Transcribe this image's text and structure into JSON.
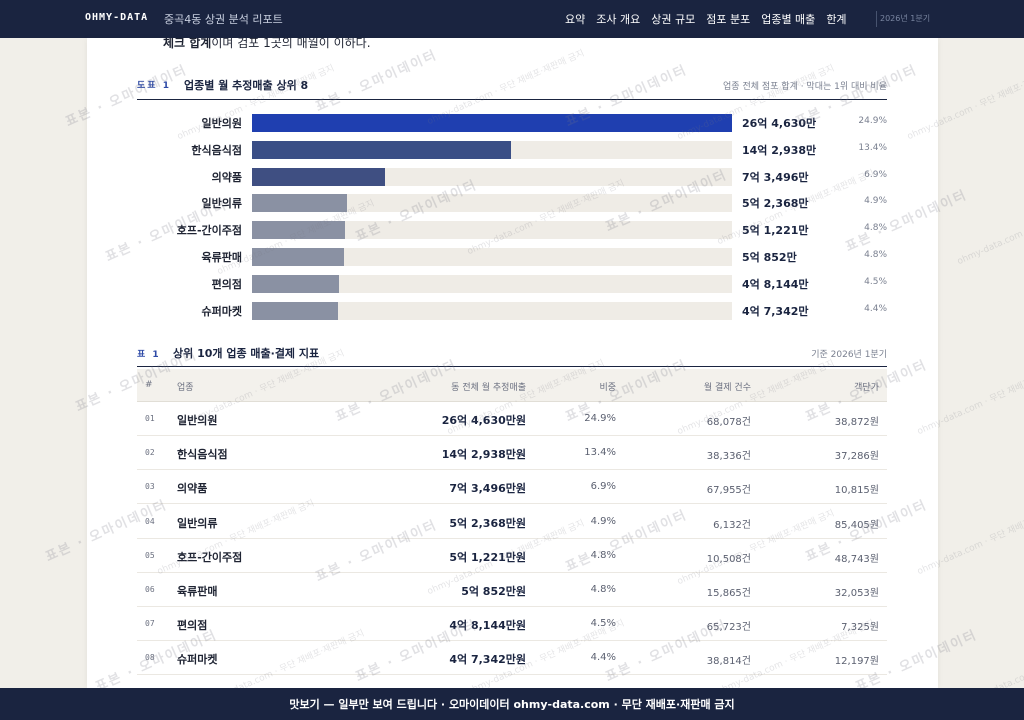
{
  "nav": {
    "brand": "OHMY-DATA",
    "report_title": "중곡4동 상권 분석 리포트",
    "links": [
      "요약",
      "조사 개요",
      "상권 규모",
      "점포 분포",
      "업종별 매출",
      "한계"
    ],
    "period": "2026년 1분기"
  },
  "intro": {
    "bold": "체크 합계",
    "rest": "이며 검포 1곳의 매월이 이하다."
  },
  "figure": {
    "tag": "도표 1",
    "title": "업종별 월 추정매출 상위 8",
    "note": "업종 전체 점포 합계 · 막대는 1위 대비 비율"
  },
  "chart_data": {
    "type": "bar",
    "orientation": "horizontal",
    "categories": [
      "일반의원",
      "한식음식점",
      "의약품",
      "일반의류",
      "호프-간이주점",
      "육류판매",
      "편의점",
      "슈퍼마켓"
    ],
    "value_labels": [
      "26억 4,630만",
      "14억 2,938만",
      "7억 3,496만",
      "5억 2,368만",
      "5억 1,221만",
      "5억 852만",
      "4억 8,144만",
      "4억 7,342만"
    ],
    "shares": [
      "24.9%",
      "13.4%",
      "6.9%",
      "4.9%",
      "4.8%",
      "4.8%",
      "4.5%",
      "4.4%"
    ],
    "values": [
      264630,
      142938,
      73496,
      52368,
      51221,
      50852,
      48144,
      47342
    ],
    "colors": [
      "#1f3fb0",
      "#3a4e86",
      "#3f4f82",
      "#8a91a3",
      "#8a91a3",
      "#8a91a3",
      "#8a91a3",
      "#8a91a3"
    ]
  },
  "table": {
    "tag": "표 1",
    "title": "상위 10개 업종 매출·결제 지표",
    "note": "기준 2026년 1분기",
    "columns": [
      "#",
      "업종",
      "동 전체 월 추정매출",
      "비중",
      "월 결제 건수",
      "객단가"
    ],
    "rows": [
      {
        "no": "01",
        "name": "일반의원",
        "sales": "26억 4,630만원",
        "share": "24.9%",
        "count": "68,078건",
        "ticket": "38,872원"
      },
      {
        "no": "02",
        "name": "한식음식점",
        "sales": "14억 2,938만원",
        "share": "13.4%",
        "count": "38,336건",
        "ticket": "37,286원"
      },
      {
        "no": "03",
        "name": "의약품",
        "sales": "7억 3,496만원",
        "share": "6.9%",
        "count": "67,955건",
        "ticket": "10,815원"
      },
      {
        "no": "04",
        "name": "일반의류",
        "sales": "5억 2,368만원",
        "share": "4.9%",
        "count": "6,132건",
        "ticket": "85,405원"
      },
      {
        "no": "05",
        "name": "호프-간이주점",
        "sales": "5억 1,221만원",
        "share": "4.8%",
        "count": "10,508건",
        "ticket": "48,743원"
      },
      {
        "no": "06",
        "name": "육류판매",
        "sales": "5억 852만원",
        "share": "4.8%",
        "count": "15,865건",
        "ticket": "32,053원"
      },
      {
        "no": "07",
        "name": "편의점",
        "sales": "4억 8,144만원",
        "share": "4.5%",
        "count": "65,723건",
        "ticket": "7,325원"
      },
      {
        "no": "08",
        "name": "슈퍼마켓",
        "sales": "4억 7,342만원",
        "share": "4.4%",
        "count": "38,814건",
        "ticket": "12,197원"
      }
    ]
  },
  "watermark": {
    "big": "표본 · 오마이데이터",
    "small": "ohmy-data.com · 무단 재배포·재판매 금지"
  },
  "banner": "맛보기 — 일부만 보여 드립니다 · 오마이데이터 ohmy-data.com · 무단 재배포·재판매 금지"
}
